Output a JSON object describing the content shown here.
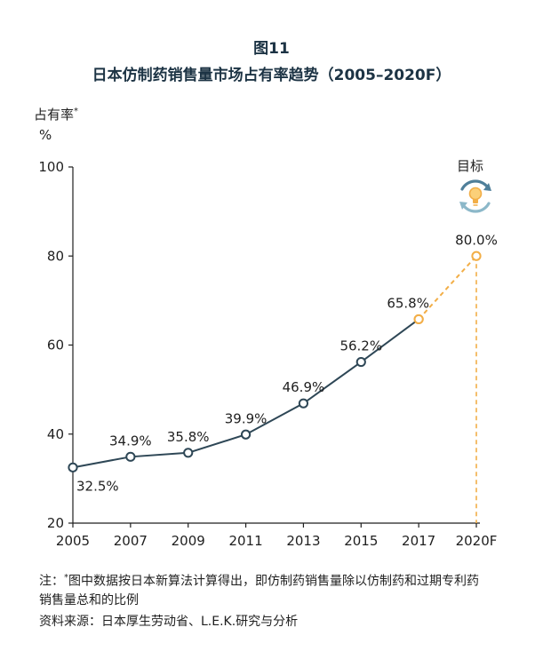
{
  "figure": {
    "label": "图11",
    "title": "日本仿制药销售量市场占有率趋势（2005–2020F）"
  },
  "target_label": "目标",
  "chart_data": {
    "type": "line",
    "ylabel": "占有率",
    "ylabel_mark": "*",
    "yunit": "%",
    "ylim": [
      20,
      100
    ],
    "yticks": [
      20,
      40,
      60,
      80,
      100
    ],
    "categories": [
      "2005",
      "2007",
      "2009",
      "2011",
      "2013",
      "2015",
      "2017",
      "2020F"
    ],
    "series": [
      {
        "values": [
          32.5,
          34.9,
          35.8,
          39.9,
          46.9,
          56.2,
          65.8,
          null
        ],
        "labels": [
          "32.5%",
          "34.9%",
          "35.8%",
          "39.9%",
          "46.9%",
          "56.2%",
          "65.8%",
          null
        ],
        "color": "#2e4756"
      },
      {
        "values": [
          null,
          null,
          null,
          null,
          null,
          null,
          65.8,
          80.0
        ],
        "labels": [
          null,
          null,
          null,
          null,
          null,
          null,
          null,
          "80.0%"
        ],
        "color": "#f2ae47",
        "style": "dashed"
      }
    ],
    "grid": false,
    "legend": "none"
  },
  "note": {
    "prefix": "注：",
    "mark": "*",
    "text": "图中数据按日本新算法计算得出，即仿制药销售量除以仿制药和过期专利药销售量总和的比例"
  },
  "source": "资料来源：日本厚生劳动省、L.E.K.研究与分析",
  "colors": {
    "title": "#1c3344",
    "line": "#2e4756",
    "target": "#f2ae47",
    "icon_ring_a": "#4f7f9a",
    "icon_ring_b": "#8cb8c9"
  }
}
